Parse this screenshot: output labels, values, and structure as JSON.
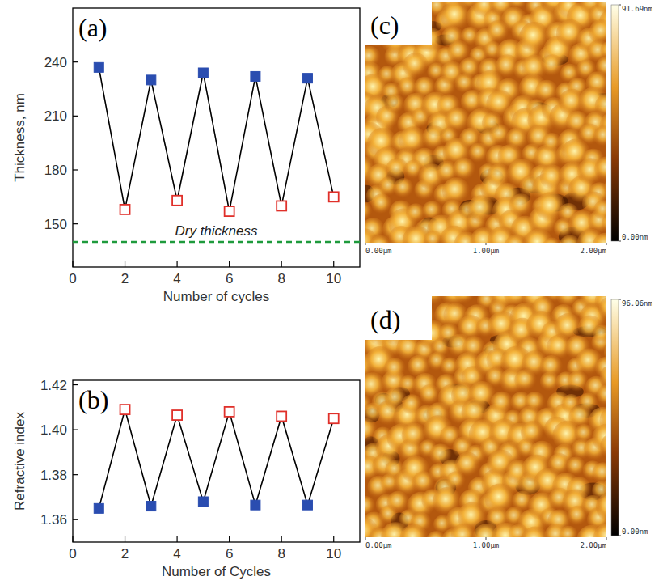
{
  "chart_data": [
    {
      "type": "line",
      "panel": "(a)",
      "x_label": "Number of cycles",
      "y_label": "Thickness, nm",
      "xlim": [
        0,
        11
      ],
      "xticks": [
        0,
        2,
        4,
        6,
        8,
        10
      ],
      "ylim": [
        126,
        270
      ],
      "yticks": [
        150,
        180,
        210,
        240
      ],
      "line_style": "solid",
      "color": "#000000",
      "series": [
        {
          "x": [
            1,
            3,
            5,
            7,
            9
          ],
          "values": [
            237,
            230,
            234,
            232,
            231
          ],
          "color": "#2a4db0",
          "marker": "square"
        },
        {
          "x": [
            2,
            4,
            6,
            8,
            10
          ],
          "values": [
            158,
            163,
            157,
            160,
            165
          ],
          "color": "#e0302a",
          "marker": "open-square"
        }
      ],
      "annotations": [
        {
          "text": "Dry thickness",
          "y": 140,
          "color": "#1e9a3c",
          "line_style": "dashed"
        }
      ]
    },
    {
      "type": "line",
      "panel": "(b)",
      "x_label": "Number of Cycles",
      "y_label": "Refractive index",
      "xlim": [
        0,
        11
      ],
      "xticks": [
        0,
        2,
        4,
        6,
        8,
        10
      ],
      "ylim": [
        1.35,
        1.422
      ],
      "yticks": [
        {
          "value": 1.36,
          "label": "1.36"
        },
        {
          "value": 1.38,
          "label": "1.38"
        },
        {
          "value": 1.4,
          "label": "1.40"
        },
        {
          "value": 1.42,
          "label": "1.42"
        }
      ],
      "line_style": "solid",
      "color": "#000000",
      "series": [
        {
          "x": [
            1,
            3,
            5,
            7,
            9
          ],
          "values": [
            1.365,
            1.366,
            1.368,
            1.3665,
            1.3665
          ],
          "color": "#2a4db0",
          "marker": "square"
        },
        {
          "x": [
            2,
            4,
            6,
            8,
            10
          ],
          "values": [
            1.409,
            1.4065,
            1.408,
            1.406,
            1.405
          ],
          "color": "#e0302a",
          "marker": "open-square"
        }
      ]
    },
    {
      "type": "image",
      "panel": "(c)",
      "xlim": [
        0,
        2
      ],
      "xticks": [
        {
          "value": 0,
          "label": "0.00μm"
        },
        {
          "value": 1,
          "label": "1.00μm"
        },
        {
          "value": 2,
          "label": "2.00μm"
        }
      ],
      "colorbar_range": [
        0,
        91.69
      ],
      "colorbar_ticks": [
        {
          "value": 0,
          "label": "0.00nm"
        },
        {
          "value": 91.69,
          "label": "91.69nm"
        }
      ]
    },
    {
      "type": "image",
      "panel": "(d)",
      "xlim": [
        0,
        2
      ],
      "xticks": [
        {
          "value": 0,
          "label": "0.00μm"
        },
        {
          "value": 1,
          "label": "1.00μm"
        },
        {
          "value": 2,
          "label": "2.00μm"
        }
      ],
      "colorbar_range": [
        0,
        96.06
      ],
      "colorbar_ticks": [
        {
          "value": 0,
          "label": "0.00nm"
        },
        {
          "value": 96.06,
          "label": "96.06nm"
        }
      ]
    }
  ]
}
